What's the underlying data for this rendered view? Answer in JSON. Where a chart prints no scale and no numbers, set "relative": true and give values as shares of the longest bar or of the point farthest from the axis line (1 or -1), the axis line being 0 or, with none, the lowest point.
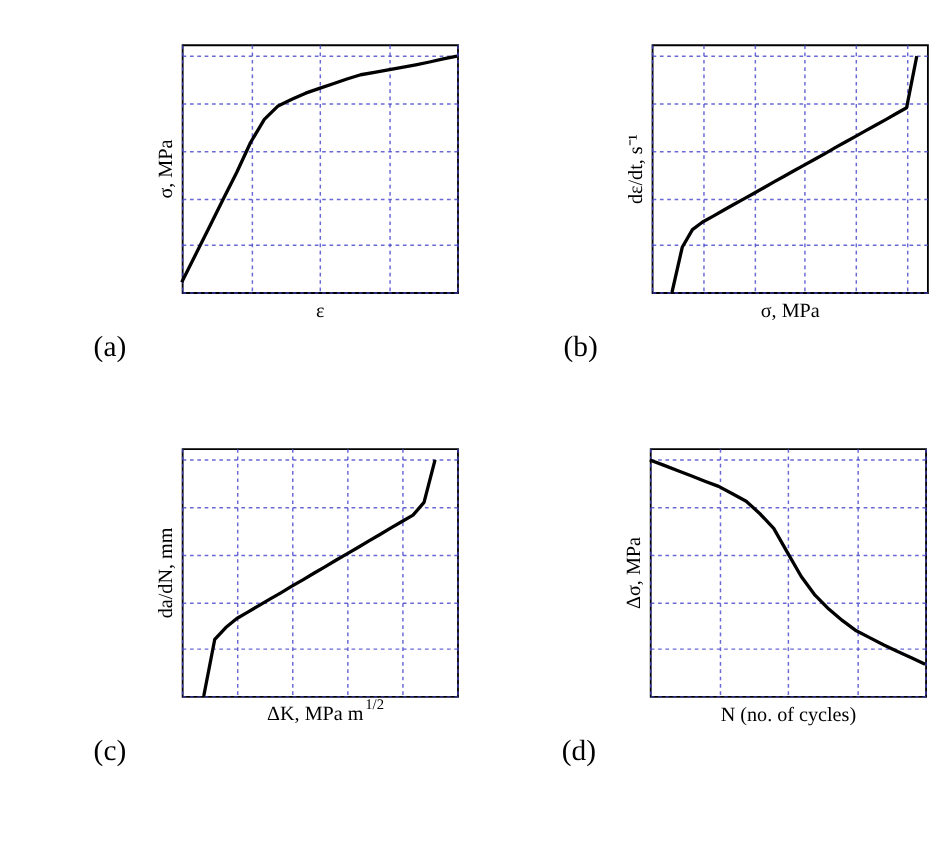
{
  "chart_data": [
    {
      "type": "line",
      "relative": true,
      "xlabel": "ε",
      "ylabel": "σ, MPa",
      "grid": true,
      "tick_labels": false,
      "annotations": [
        "(a)"
      ],
      "categories": [
        null,
        null,
        null,
        null,
        null,
        null,
        null,
        null,
        null,
        null,
        null,
        null,
        null,
        null,
        null,
        null,
        null,
        null,
        null,
        null,
        null
      ],
      "series": [
        {
          "color": "#000000",
          "values": [
            0.042,
            0.158,
            0.275,
            0.392,
            0.508,
            0.634,
            0.732,
            0.789,
            0.817,
            0.843,
            0.863,
            0.883,
            0.903,
            0.921,
            0.931,
            0.942,
            0.952,
            0.963,
            0.975,
            0.988,
            1.0
          ]
        }
      ]
    },
    {
      "type": "line",
      "relative": true,
      "xlabel": "σ, MPa",
      "ylabel": "dε/dt, s⁻¹",
      "grid": true,
      "tick_labels": false,
      "annotations": [
        "(b)"
      ],
      "categories": [
        null,
        null,
        null,
        null,
        null,
        null,
        null,
        null,
        null,
        null,
        null,
        null,
        null,
        null,
        null,
        null,
        null,
        null,
        null,
        null,
        null,
        null,
        null,
        null,
        null,
        null,
        null,
        null
      ],
      "series": [
        {
          "color": "#000000",
          "values": [
            null,
            null,
            0.0,
            0.19,
            0.265,
            0.297,
            0.321,
            0.346,
            0.37,
            0.394,
            0.418,
            0.442,
            0.467,
            0.491,
            0.515,
            0.539,
            0.563,
            0.587,
            0.612,
            0.636,
            0.66,
            0.684,
            0.708,
            0.732,
            0.757,
            0.781,
            1.0,
            null
          ]
        }
      ]
    },
    {
      "type": "line",
      "relative": true,
      "xlabel": "ΔK, MPa m$^{1/2}$",
      "ylabel": "da/dN, mm",
      "grid": true,
      "tick_labels": false,
      "annotations": [
        "(c)"
      ],
      "categories": [
        null,
        null,
        null,
        null,
        null,
        null,
        null,
        null,
        null,
        null,
        null,
        null,
        null,
        null,
        null,
        null,
        null,
        null,
        null,
        null,
        null,
        null,
        null,
        null,
        null,
        null
      ],
      "series": [
        {
          "color": "#000000",
          "values": [
            null,
            null,
            0.0,
            0.24,
            0.29,
            0.328,
            0.355,
            0.383,
            0.41,
            0.437,
            0.465,
            0.492,
            0.52,
            0.547,
            0.575,
            0.602,
            0.629,
            0.657,
            0.684,
            0.712,
            0.739,
            0.766,
            0.82,
            1.0,
            null,
            null
          ]
        }
      ]
    },
    {
      "type": "line",
      "relative": true,
      "xlabel": "N (no. of cycles)",
      "ylabel": "Δσ, MPa",
      "grid": true,
      "tick_labels": false,
      "annotations": [
        "(d)"
      ],
      "categories": [
        null,
        null,
        null,
        null,
        null,
        null,
        null,
        null,
        null,
        null,
        null,
        null,
        null,
        null,
        null,
        null,
        null,
        null,
        null,
        null,
        null
      ],
      "series": [
        {
          "color": "#000000",
          "values": [
            1.0,
            0.978,
            0.955,
            0.933,
            0.91,
            0.888,
            0.857,
            0.825,
            0.772,
            0.71,
            0.607,
            0.506,
            0.427,
            0.368,
            0.319,
            0.276,
            0.246,
            0.216,
            0.188,
            0.162,
            0.134
          ]
        }
      ]
    }
  ]
}
